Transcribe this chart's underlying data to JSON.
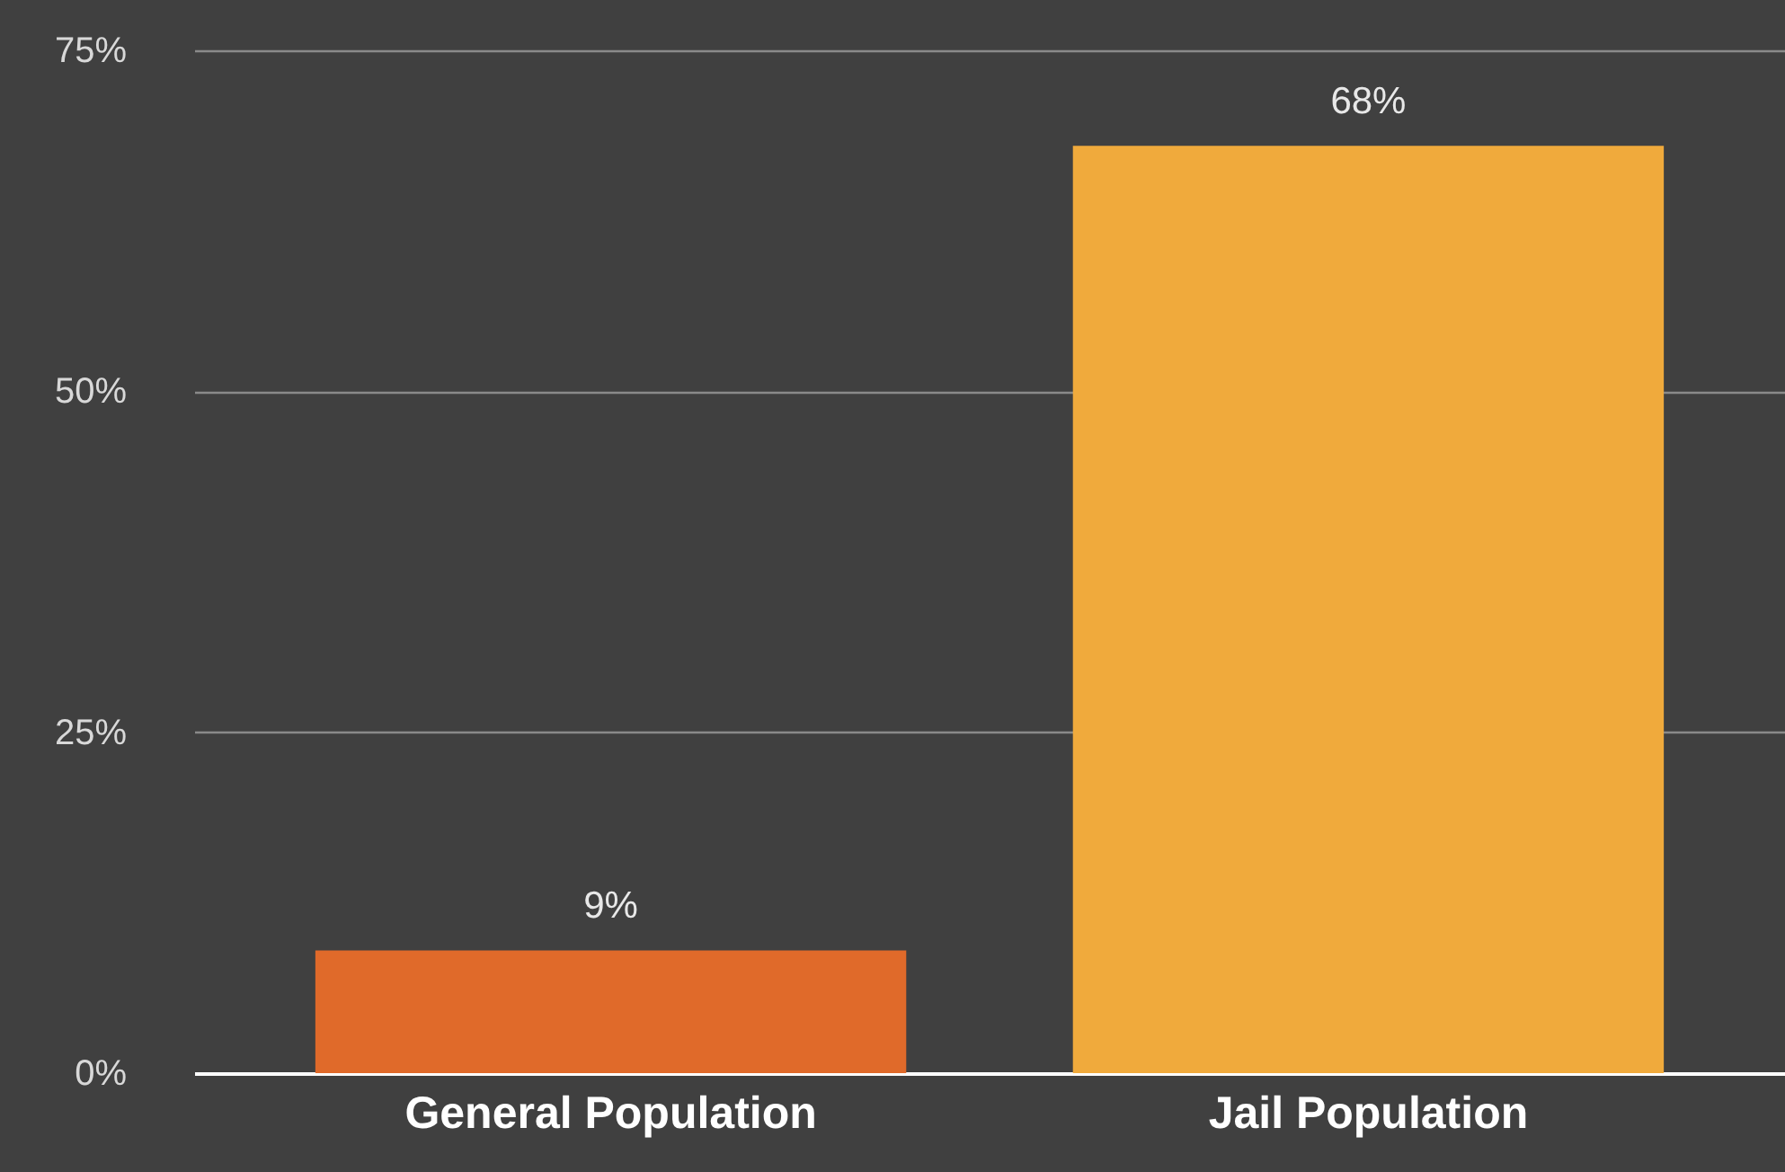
{
  "chart_data": {
    "type": "bar",
    "categories": [
      "General Population",
      "Jail Population"
    ],
    "values": [
      9,
      68
    ],
    "colors": [
      "#e06a2a",
      "#f0aa3c"
    ],
    "value_labels": [
      "9%",
      "68%"
    ],
    "ylim": [
      0,
      75
    ],
    "yticks": [
      {
        "value": 0,
        "label": "0%"
      },
      {
        "value": 25,
        "label": "25%"
      },
      {
        "value": 50,
        "label": "50%"
      },
      {
        "value": 75,
        "label": "75%"
      }
    ],
    "grid": "y"
  }
}
